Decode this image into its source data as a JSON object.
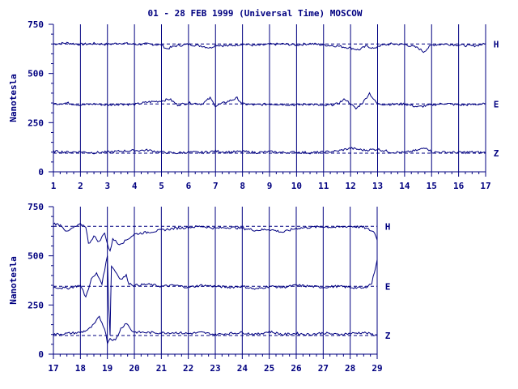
{
  "title": "01 - 28 FEB 1999 (Universal Time) MOSCOW",
  "colors": {
    "ink": "#000080",
    "background": "#ffffff"
  },
  "chart_data": [
    {
      "type": "line",
      "ylabel": "Nanotesla",
      "xlim": [
        1,
        17
      ],
      "ylim": [
        0,
        750
      ],
      "x_ticks": [
        "1",
        "2",
        "3",
        "4",
        "5",
        "6",
        "7",
        "8",
        "9",
        "10",
        "11",
        "12",
        "13",
        "14",
        "15",
        "16",
        "17"
      ],
      "y_ticks": [
        "0",
        "250",
        "500",
        "750"
      ],
      "grid": "vertical lines at each day",
      "series": [
        {
          "name": "H",
          "baseline": 650,
          "points": [
            [
              1,
              650
            ],
            [
              1.5,
              655
            ],
            [
              2,
              648
            ],
            [
              2.5,
              652
            ],
            [
              3,
              648
            ],
            [
              3.5,
              655
            ],
            [
              4,
              648
            ],
            [
              4.5,
              650
            ],
            [
              5,
              645
            ],
            [
              5.2,
              625
            ],
            [
              5.5,
              640
            ],
            [
              6,
              648
            ],
            [
              6.5,
              640
            ],
            [
              6.8,
              630
            ],
            [
              7,
              645
            ],
            [
              7.5,
              640
            ],
            [
              8,
              650
            ],
            [
              8.5,
              642
            ],
            [
              9,
              648
            ],
            [
              9.5,
              650
            ],
            [
              10,
              645
            ],
            [
              10.5,
              652
            ],
            [
              11,
              645
            ],
            [
              11.5,
              640
            ],
            [
              12,
              630
            ],
            [
              12.3,
              620
            ],
            [
              12.6,
              640
            ],
            [
              12.9,
              625
            ],
            [
              13,
              640
            ],
            [
              13.5,
              650
            ],
            [
              14,
              648
            ],
            [
              14.5,
              630
            ],
            [
              14.7,
              610
            ],
            [
              15,
              645
            ],
            [
              15.5,
              650
            ],
            [
              16,
              645
            ],
            [
              16.5,
              640
            ],
            [
              17,
              650
            ]
          ]
        },
        {
          "name": "E",
          "baseline": 345,
          "points": [
            [
              1,
              345
            ],
            [
              1.5,
              350
            ],
            [
              2,
              340
            ],
            [
              2.5,
              345
            ],
            [
              3,
              340
            ],
            [
              3.5,
              345
            ],
            [
              4,
              342
            ],
            [
              4.5,
              355
            ],
            [
              5,
              360
            ],
            [
              5.3,
              370
            ],
            [
              5.6,
              340
            ],
            [
              6,
              350
            ],
            [
              6.5,
              345
            ],
            [
              6.8,
              375
            ],
            [
              7,
              335
            ],
            [
              7.5,
              360
            ],
            [
              7.8,
              375
            ],
            [
              8,
              345
            ],
            [
              8.5,
              340
            ],
            [
              9,
              345
            ],
            [
              9.5,
              343
            ],
            [
              10,
              340
            ],
            [
              10.5,
              345
            ],
            [
              11,
              335
            ],
            [
              11.5,
              345
            ],
            [
              11.8,
              370
            ],
            [
              12,
              345
            ],
            [
              12.2,
              320
            ],
            [
              12.5,
              360
            ],
            [
              12.7,
              400
            ],
            [
              12.9,
              360
            ],
            [
              13,
              345
            ],
            [
              13.5,
              343
            ],
            [
              14,
              345
            ],
            [
              14.5,
              330
            ],
            [
              15,
              340
            ],
            [
              15.5,
              348
            ],
            [
              16,
              340
            ],
            [
              16.5,
              342
            ],
            [
              17,
              345
            ]
          ]
        },
        {
          "name": "Z",
          "baseline": 95,
          "points": [
            [
              1,
              105
            ],
            [
              1.5,
              100
            ],
            [
              2,
              102
            ],
            [
              2.5,
              97
            ],
            [
              3,
              100
            ],
            [
              3.5,
              105
            ],
            [
              4,
              108
            ],
            [
              4.5,
              110
            ],
            [
              5,
              100
            ],
            [
              5.5,
              95
            ],
            [
              6,
              100
            ],
            [
              6.5,
              98
            ],
            [
              7,
              105
            ],
            [
              7.5,
              100
            ],
            [
              8,
              103
            ],
            [
              8.5,
              98
            ],
            [
              9,
              102
            ],
            [
              9.5,
              98
            ],
            [
              10,
              100
            ],
            [
              10.5,
              97
            ],
            [
              11,
              100
            ],
            [
              11.5,
              105
            ],
            [
              12,
              120
            ],
            [
              12.5,
              110
            ],
            [
              13,
              115
            ],
            [
              13.5,
              100
            ],
            [
              14,
              98
            ],
            [
              14.5,
              110
            ],
            [
              14.8,
              125
            ],
            [
              15,
              100
            ],
            [
              15.5,
              100
            ],
            [
              16,
              98
            ],
            [
              16.5,
              100
            ],
            [
              17,
              97
            ]
          ]
        }
      ]
    },
    {
      "type": "line",
      "ylabel": "Nanotesla",
      "xlim": [
        17,
        29
      ],
      "ylim": [
        0,
        750
      ],
      "x_ticks": [
        "17",
        "18",
        "19",
        "20",
        "21",
        "22",
        "23",
        "24",
        "25",
        "26",
        "27",
        "28",
        "29"
      ],
      "y_ticks": [
        "0",
        "250",
        "500",
        "750"
      ],
      "grid": "vertical lines at each day",
      "series": [
        {
          "name": "H",
          "baseline": 650,
          "points": [
            [
              17,
              665
            ],
            [
              17.3,
              655
            ],
            [
              17.5,
              620
            ],
            [
              17.7,
              640
            ],
            [
              18,
              660
            ],
            [
              18.2,
              650
            ],
            [
              18.3,
              560
            ],
            [
              18.5,
              600
            ],
            [
              18.7,
              570
            ],
            [
              18.9,
              620
            ],
            [
              19,
              560
            ],
            [
              19.1,
              520
            ],
            [
              19.2,
              590
            ],
            [
              19.4,
              560
            ],
            [
              19.6,
              570
            ],
            [
              19.8,
              590
            ],
            [
              20,
              610
            ],
            [
              20.5,
              620
            ],
            [
              21,
              630
            ],
            [
              21.5,
              640
            ],
            [
              22,
              645
            ],
            [
              22.5,
              650
            ],
            [
              23,
              640
            ],
            [
              23.5,
              645
            ],
            [
              24,
              640
            ],
            [
              24.5,
              630
            ],
            [
              25,
              635
            ],
            [
              25.5,
              620
            ],
            [
              26,
              640
            ],
            [
              26.5,
              645
            ],
            [
              27,
              648
            ],
            [
              27.5,
              645
            ],
            [
              28,
              650
            ],
            [
              28.5,
              645
            ],
            [
              28.9,
              620
            ],
            [
              29,
              580
            ]
          ]
        },
        {
          "name": "E",
          "baseline": 345,
          "points": [
            [
              17,
              340
            ],
            [
              17.5,
              335
            ],
            [
              18,
              350
            ],
            [
              18.2,
              290
            ],
            [
              18.4,
              380
            ],
            [
              18.6,
              410
            ],
            [
              18.8,
              360
            ],
            [
              19,
              500
            ],
            [
              19.05,
              250
            ],
            [
              19.1,
              100
            ],
            [
              19.15,
              450
            ],
            [
              19.3,
              420
            ],
            [
              19.5,
              380
            ],
            [
              19.7,
              400
            ],
            [
              19.8,
              360
            ],
            [
              20,
              350
            ],
            [
              20.5,
              355
            ],
            [
              21,
              345
            ],
            [
              21.5,
              350
            ],
            [
              22,
              340
            ],
            [
              22.5,
              350
            ],
            [
              23,
              345
            ],
            [
              23.5,
              340
            ],
            [
              24,
              345
            ],
            [
              24.5,
              330
            ],
            [
              25,
              345
            ],
            [
              25.5,
              340
            ],
            [
              26,
              350
            ],
            [
              26.5,
              345
            ],
            [
              27,
              340
            ],
            [
              27.5,
              345
            ],
            [
              28,
              340
            ],
            [
              28.5,
              335
            ],
            [
              28.8,
              360
            ],
            [
              29,
              480
            ]
          ]
        },
        {
          "name": "Z",
          "baseline": 95,
          "points": [
            [
              17,
              100
            ],
            [
              17.5,
              105
            ],
            [
              18,
              110
            ],
            [
              18.3,
              125
            ],
            [
              18.5,
              150
            ],
            [
              18.7,
              190
            ],
            [
              18.9,
              130
            ],
            [
              19,
              60
            ],
            [
              19.1,
              80
            ],
            [
              19.3,
              70
            ],
            [
              19.5,
              130
            ],
            [
              19.7,
              160
            ],
            [
              19.9,
              120
            ],
            [
              20,
              112
            ],
            [
              20.5,
              110
            ],
            [
              21,
              108
            ],
            [
              21.5,
              110
            ],
            [
              22,
              105
            ],
            [
              22.5,
              110
            ],
            [
              23,
              100
            ],
            [
              23.5,
              105
            ],
            [
              24,
              110
            ],
            [
              24.5,
              100
            ],
            [
              25,
              115
            ],
            [
              25.5,
              100
            ],
            [
              26,
              105
            ],
            [
              26.5,
              100
            ],
            [
              27,
              108
            ],
            [
              27.5,
              100
            ],
            [
              28,
              105
            ],
            [
              28.5,
              110
            ],
            [
              29,
              95
            ]
          ]
        }
      ]
    }
  ]
}
